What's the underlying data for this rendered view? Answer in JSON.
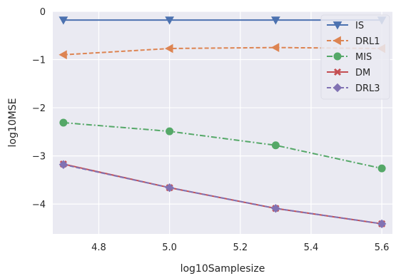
{
  "chart_data": {
    "type": "line",
    "xlabel": "log10Samplesize",
    "ylabel": "log10MSE",
    "xlim": [
      4.67,
      5.63
    ],
    "ylim": [
      -4.62,
      0.0
    ],
    "xticks": [
      4.8,
      5.0,
      5.2,
      5.4,
      5.6
    ],
    "xtick_labels": [
      "4.8",
      "5.0",
      "5.2",
      "5.4",
      "5.6"
    ],
    "yticks": [
      0,
      -1,
      -2,
      -3,
      -4
    ],
    "ytick_labels": [
      "0",
      "−1",
      "−2",
      "−3",
      "−4"
    ],
    "grid": true,
    "background": "#eaeaf2",
    "legend_position": "top-right",
    "x": [
      4.7,
      5.0,
      5.3,
      5.6
    ],
    "series": [
      {
        "name": "IS",
        "values": [
          -0.18,
          -0.18,
          -0.18,
          -0.18
        ],
        "color": "#4c72b0",
        "dash": "solid",
        "marker": "triangle-down"
      },
      {
        "name": "DRL1",
        "values": [
          -0.9,
          -0.77,
          -0.75,
          -0.77
        ],
        "color": "#dd8452",
        "dash": "dashed",
        "marker": "triangle-left"
      },
      {
        "name": "MIS",
        "values": [
          -2.31,
          -2.49,
          -2.78,
          -3.26
        ],
        "color": "#55a868",
        "dash": "dashdot",
        "marker": "circle"
      },
      {
        "name": "DM",
        "values": [
          -3.17,
          -3.66,
          -4.09,
          -4.41
        ],
        "color": "#c44e52",
        "dash": "solid",
        "marker": "x"
      },
      {
        "name": "DRL3",
        "values": [
          -3.18,
          -3.66,
          -4.09,
          -4.41
        ],
        "color": "#8172b3",
        "dash": "dashed",
        "marker": "diamond"
      }
    ]
  }
}
